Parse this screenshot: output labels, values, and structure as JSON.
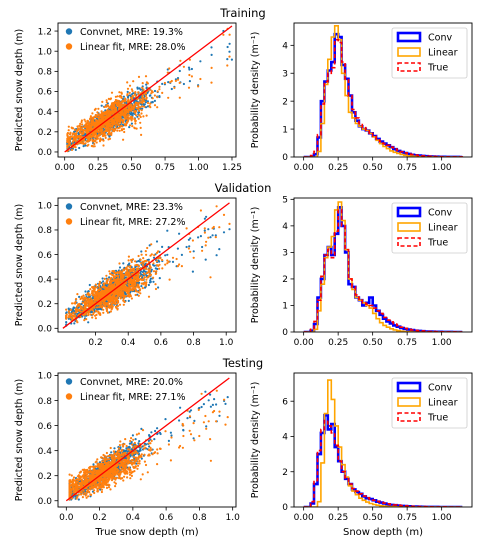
{
  "rows": [
    "Training",
    "Validation",
    "Testing"
  ],
  "colors": {
    "conv": "#1f77b4",
    "linear": "#ff7f0e",
    "true": "#ff0000",
    "conv_hist": "#0000ff",
    "linear_hist": "#ffa500",
    "fit_line": "#ff0000"
  },
  "chart_data": [
    {
      "type": "scatter",
      "title": "Training",
      "xlabel": "",
      "ylabel": "Predicted snow depth (m)",
      "xlim": [
        -0.05,
        1.28
      ],
      "ylim": [
        -0.05,
        1.28
      ],
      "xticks": [
        0.0,
        0.25,
        0.5,
        0.75,
        1.0,
        1.25
      ],
      "yticks": [
        0.0,
        0.2,
        0.4,
        0.6,
        0.8,
        1.0,
        1.2
      ],
      "legend": [
        {
          "name": "Convnet, MRE: 19.3%"
        },
        {
          "name": "Linear fit, MRE: 28.0%"
        }
      ],
      "legend_position": "top-left",
      "reference_line": {
        "x": [
          0.0,
          1.25
        ],
        "y": [
          0.0,
          1.25
        ]
      },
      "cloud": {
        "x_mean": 0.3,
        "x_sd": 0.15,
        "x_max": 1.25,
        "conv_slope": 0.8,
        "conv_intercept": 0.06,
        "conv_noise": 0.07,
        "lin_slope": 0.72,
        "lin_intercept": 0.08,
        "lin_noise": 0.1
      }
    },
    {
      "type": "bar",
      "title": "",
      "xlabel": "",
      "ylabel": "Probability density (m⁻¹)",
      "xlim": [
        -0.07,
        1.22
      ],
      "ylim": [
        0,
        4.8
      ],
      "xticks": [
        0.0,
        0.25,
        0.5,
        0.75,
        1.0
      ],
      "yticks": [
        0,
        1,
        2,
        3,
        4
      ],
      "legend": [
        {
          "name": "Conv"
        },
        {
          "name": "Linear"
        },
        {
          "name": "True"
        }
      ],
      "legend_position": "top-right",
      "bins": {
        "start": 0.0,
        "width": 0.025,
        "count": 46
      },
      "series": [
        {
          "name": "Conv",
          "values": [
            0,
            0,
            0,
            0.1,
            0.7,
            2.0,
            2.7,
            3.1,
            3.4,
            4.4,
            4.3,
            3.3,
            2.8,
            2.2,
            1.6,
            1.3,
            1.1,
            1.0,
            0.95,
            0.85,
            0.75,
            0.65,
            0.55,
            0.48,
            0.42,
            0.35,
            0.28,
            0.22,
            0.18,
            0.14,
            0.11,
            0.08,
            0.06,
            0.05,
            0.04,
            0.03,
            0.02,
            0.015,
            0.01,
            0.008,
            0.006,
            0.005,
            0.004,
            0.003,
            0.002,
            0.001
          ]
        },
        {
          "name": "Linear",
          "values": [
            0,
            0,
            0,
            0,
            0.2,
            1.2,
            2.6,
            3.5,
            4.3,
            4.7,
            4.2,
            3.0,
            2.2,
            1.6,
            1.4,
            1.2,
            1.1,
            1.0,
            0.95,
            0.85,
            0.72,
            0.6,
            0.48,
            0.38,
            0.3,
            0.22,
            0.17,
            0.13,
            0.09,
            0.06,
            0.04,
            0.03,
            0.02,
            0.01,
            0.008,
            0.005,
            0.003,
            0.002,
            0.001,
            0,
            0,
            0,
            0,
            0,
            0,
            0
          ]
        },
        {
          "name": "True",
          "values": [
            0,
            0,
            0.05,
            0.2,
            0.8,
            1.9,
            2.7,
            3.0,
            3.2,
            4.2,
            4.1,
            3.4,
            2.8,
            2.2,
            1.7,
            1.4,
            1.2,
            1.05,
            0.95,
            0.85,
            0.75,
            0.65,
            0.56,
            0.48,
            0.42,
            0.35,
            0.29,
            0.24,
            0.19,
            0.15,
            0.12,
            0.09,
            0.07,
            0.05,
            0.04,
            0.03,
            0.025,
            0.02,
            0.015,
            0.01,
            0.008,
            0.006,
            0.005,
            0.004,
            0.003,
            0.002
          ]
        }
      ]
    },
    {
      "type": "scatter",
      "title": "Validation",
      "xlabel": "",
      "ylabel": "Predicted snow depth (m)",
      "xlim": [
        -0.03,
        1.06
      ],
      "ylim": [
        -0.03,
        1.06
      ],
      "xticks": [
        0.2,
        0.4,
        0.6,
        0.8,
        1.0
      ],
      "yticks": [
        0.0,
        0.2,
        0.4,
        0.6,
        0.8,
        1.0
      ],
      "legend": [
        {
          "name": "Convnet, MRE: 23.3%"
        },
        {
          "name": "Linear fit, MRE: 27.2%"
        }
      ],
      "legend_position": "top-left",
      "reference_line": {
        "x": [
          0.0,
          1.02
        ],
        "y": [
          0.0,
          1.02
        ]
      },
      "cloud": {
        "x_mean": 0.3,
        "x_sd": 0.12,
        "x_max": 1.02,
        "conv_slope": 0.78,
        "conv_intercept": 0.07,
        "conv_noise": 0.07,
        "lin_slope": 0.7,
        "lin_intercept": 0.09,
        "lin_noise": 0.08
      }
    },
    {
      "type": "bar",
      "title": "",
      "xlabel": "",
      "ylabel": "Probability density (m⁻¹)",
      "xlim": [
        -0.07,
        1.22
      ],
      "ylim": [
        0,
        5.05
      ],
      "xticks": [
        0.0,
        0.25,
        0.5,
        0.75,
        1.0
      ],
      "yticks": [
        0,
        1,
        2,
        3,
        4,
        5
      ],
      "legend": [
        {
          "name": "Conv"
        },
        {
          "name": "Linear"
        },
        {
          "name": "True"
        }
      ],
      "legend_position": "top-right",
      "bins": {
        "start": 0.0,
        "width": 0.025,
        "count": 46
      },
      "series": [
        {
          "name": "Conv",
          "values": [
            0,
            0,
            0.05,
            0.3,
            1.3,
            2.0,
            2.9,
            3.2,
            2.9,
            3.7,
            4.7,
            4.0,
            3.0,
            1.8,
            1.7,
            1.3,
            1.2,
            1.0,
            1.1,
            1.3,
            1.0,
            0.8,
            0.65,
            0.5,
            0.4,
            0.32,
            0.25,
            0.2,
            0.15,
            0.12,
            0.09,
            0.07,
            0.05,
            0.04,
            0.03,
            0.02,
            0.015,
            0.01,
            0.008,
            0.006,
            0.004,
            0.003,
            0.002,
            0.001,
            0,
            0
          ]
        },
        {
          "name": "Linear",
          "values": [
            0,
            0,
            0,
            0.1,
            0.8,
            1.8,
            2.8,
            3.2,
            3.6,
            4.6,
            4.9,
            4.2,
            3.1,
            2.0,
            1.6,
            1.3,
            1.2,
            1.1,
            1.0,
            0.9,
            0.7,
            0.5,
            0.35,
            0.25,
            0.18,
            0.12,
            0.08,
            0.05,
            0.03,
            0.02,
            0.01,
            0.005,
            0,
            0,
            0,
            0,
            0,
            0,
            0,
            0,
            0,
            0,
            0,
            0,
            0,
            0
          ]
        },
        {
          "name": "True",
          "values": [
            0,
            0,
            0.1,
            0.4,
            1.2,
            2.1,
            2.9,
            3.1,
            2.8,
            3.8,
            4.6,
            4.0,
            3.1,
            2.0,
            1.7,
            1.4,
            1.2,
            1.1,
            1.05,
            1.0,
            0.9,
            0.8,
            0.7,
            0.55,
            0.45,
            0.38,
            0.3,
            0.24,
            0.18,
            0.14,
            0.11,
            0.08,
            0.06,
            0.05,
            0.04,
            0.03,
            0.02,
            0.015,
            0.01,
            0.008,
            0.006,
            0.004,
            0.003,
            0.002,
            0.001,
            0
          ]
        }
      ]
    },
    {
      "type": "scatter",
      "title": "Testing",
      "xlabel": "True snow depth (m)",
      "ylabel": "Predicted snow depth (m)",
      "xlim": [
        -0.05,
        1.02
      ],
      "ylim": [
        -0.05,
        1.02
      ],
      "xticks": [
        0.0,
        0.2,
        0.4,
        0.6,
        0.8,
        1.0
      ],
      "yticks": [
        0.0,
        0.2,
        0.4,
        0.6,
        0.8,
        1.0
      ],
      "legend": [
        {
          "name": "Convnet, MRE: 20.0%"
        },
        {
          "name": "Linear fit, MRE: 27.1%"
        }
      ],
      "legend_position": "top-left",
      "reference_line": {
        "x": [
          0.0,
          0.98
        ],
        "y": [
          0.0,
          0.98
        ]
      },
      "cloud": {
        "x_mean": 0.22,
        "x_sd": 0.12,
        "x_max": 0.98,
        "conv_slope": 0.85,
        "conv_intercept": 0.04,
        "conv_noise": 0.06,
        "lin_slope": 0.62,
        "lin_intercept": 0.08,
        "lin_noise": 0.08
      }
    },
    {
      "type": "bar",
      "title": "",
      "xlabel": "Snow depth (m)",
      "ylabel": "Probability density (m⁻¹)",
      "xlim": [
        -0.07,
        1.22
      ],
      "ylim": [
        0,
        7.6
      ],
      "xticks": [
        0.0,
        0.25,
        0.5,
        0.75,
        1.0
      ],
      "yticks": [
        0,
        2,
        4,
        6
      ],
      "legend": [
        {
          "name": "Conv"
        },
        {
          "name": "Linear"
        },
        {
          "name": "True"
        }
      ],
      "legend_position": "top-right",
      "bins": {
        "start": 0.0,
        "width": 0.025,
        "count": 46
      },
      "series": [
        {
          "name": "Conv",
          "values": [
            0,
            0,
            0.2,
            1.3,
            3.0,
            4.2,
            5.2,
            4.4,
            4.7,
            3.4,
            2.6,
            2.0,
            1.6,
            1.3,
            1.0,
            0.85,
            0.75,
            0.6,
            0.5,
            0.45,
            0.38,
            0.3,
            0.25,
            0.2,
            0.15,
            0.12,
            0.1,
            0.08,
            0.06,
            0.05,
            0.04,
            0.03,
            0.02,
            0.015,
            0.01,
            0.008,
            0.006,
            0.004,
            0.003,
            0.002,
            0.001,
            0,
            0,
            0,
            0,
            0
          ]
        },
        {
          "name": "Linear",
          "values": [
            0,
            0,
            0,
            0,
            0.3,
            2.5,
            5.3,
            7.2,
            6.1,
            4.6,
            3.4,
            2.4,
            1.7,
            1.2,
            0.9,
            0.7,
            0.5,
            0.38,
            0.28,
            0.2,
            0.14,
            0.1,
            0.07,
            0.05,
            0.03,
            0.02,
            0.01,
            0.005,
            0,
            0,
            0,
            0,
            0,
            0,
            0,
            0,
            0,
            0,
            0,
            0,
            0,
            0,
            0,
            0,
            0,
            0
          ]
        },
        {
          "name": "True",
          "values": [
            0,
            0,
            0.3,
            1.5,
            3.2,
            4.4,
            4.9,
            4.6,
            4.2,
            3.5,
            2.6,
            2.0,
            1.6,
            1.3,
            1.05,
            0.9,
            0.75,
            0.62,
            0.52,
            0.45,
            0.38,
            0.32,
            0.27,
            0.22,
            0.18,
            0.15,
            0.12,
            0.1,
            0.08,
            0.06,
            0.05,
            0.04,
            0.03,
            0.025,
            0.02,
            0.015,
            0.01,
            0.008,
            0.006,
            0.005,
            0.004,
            0.003,
            0.002,
            0.001,
            0.001,
            0
          ]
        }
      ]
    }
  ]
}
